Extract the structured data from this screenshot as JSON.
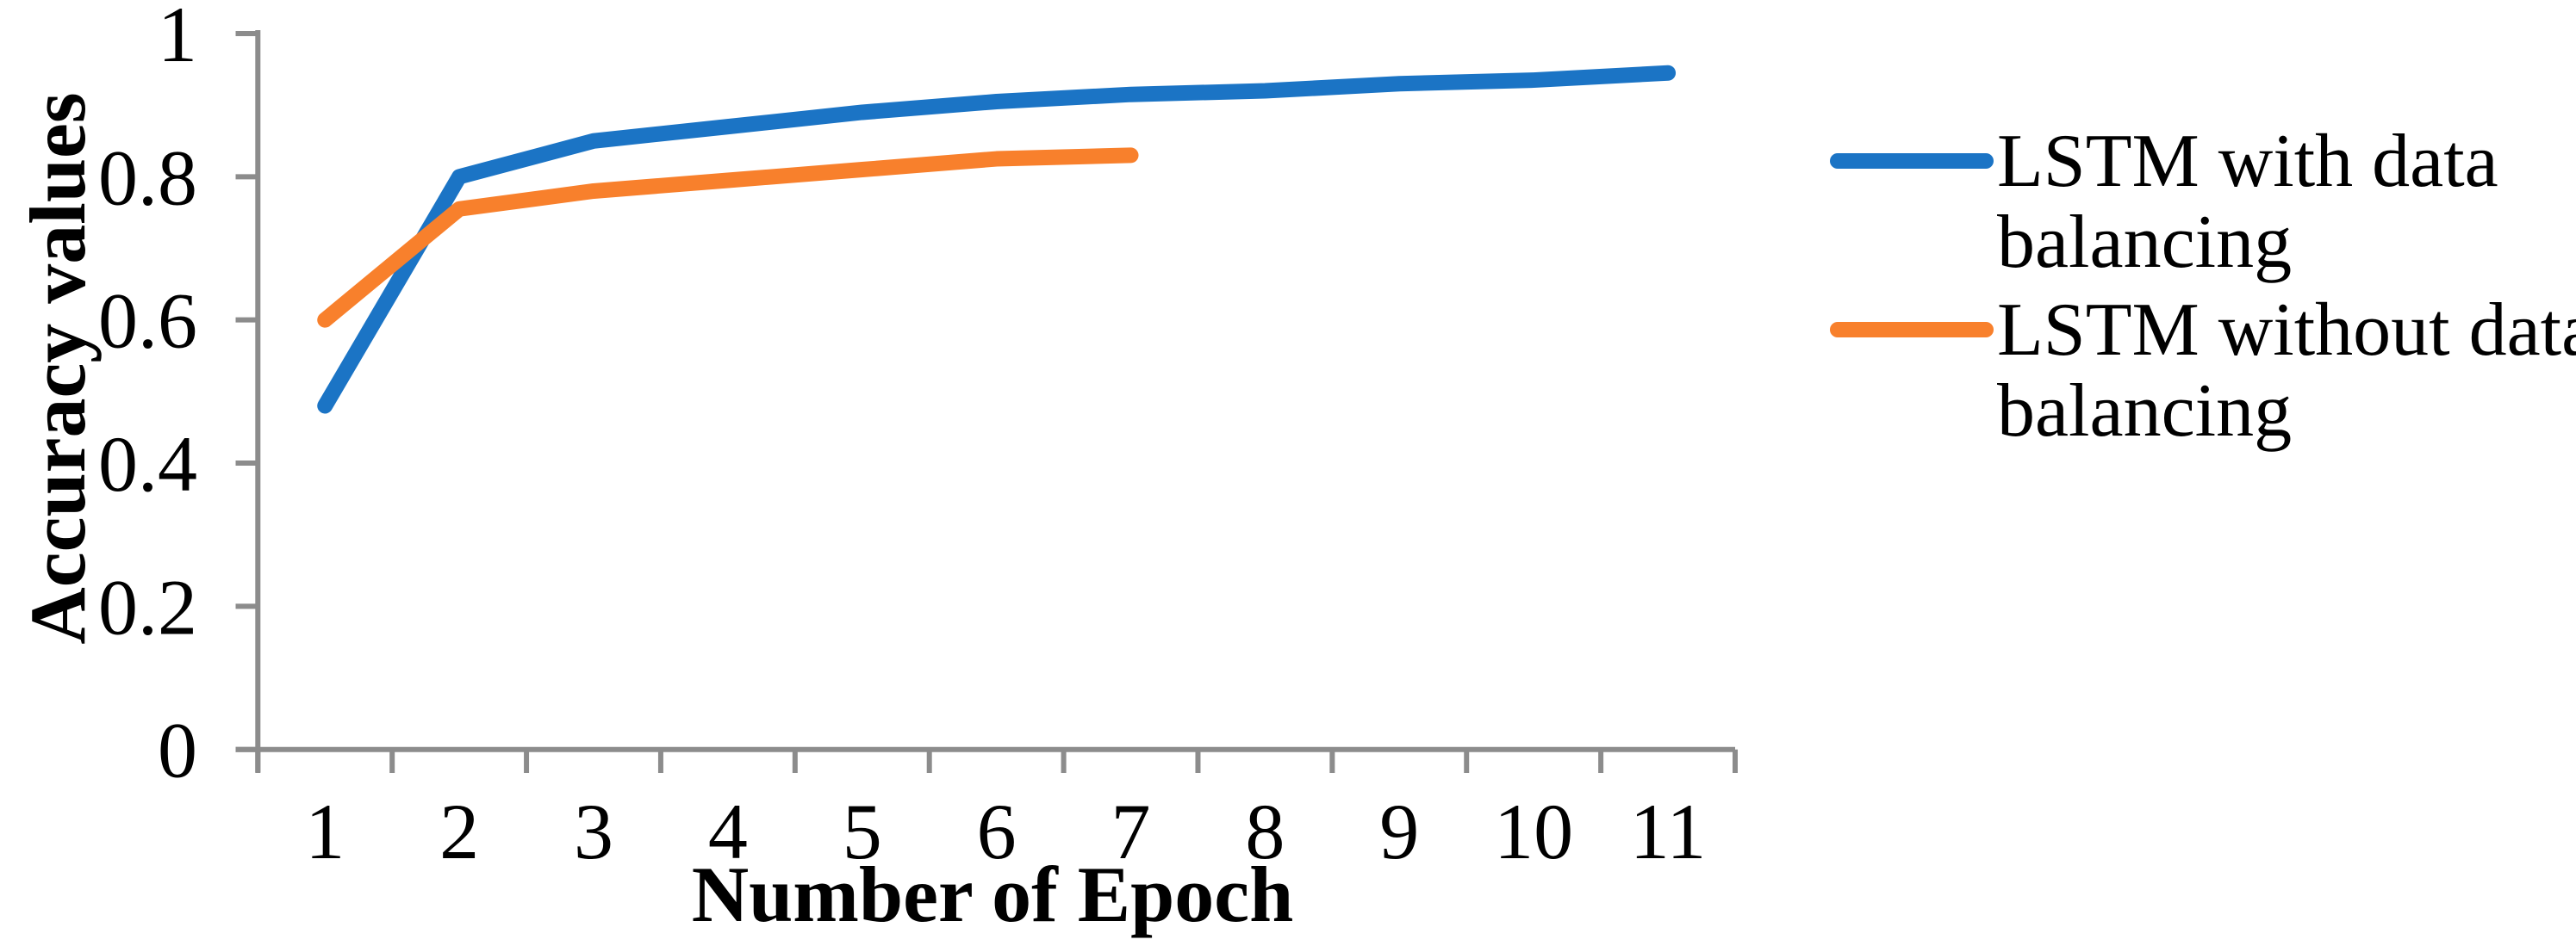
{
  "figure": {
    "background": "#FFFFFF"
  },
  "chart_data": {
    "type": "line",
    "title": "",
    "xlabel": "Number of Epoch",
    "ylabel": "Accuracy values",
    "categories": [
      "1",
      "2",
      "3",
      "4",
      "5",
      "6",
      "7",
      "8",
      "9",
      "10",
      "11"
    ],
    "x_values": [
      1,
      2,
      3,
      4,
      5,
      6,
      7,
      8,
      9,
      10,
      11
    ],
    "series": [
      {
        "name": "LSTM with data balancing",
        "color": "#1B74C5",
        "x": [
          1,
          2,
          3,
          4,
          5,
          6,
          7,
          8,
          9,
          10,
          11
        ],
        "values": [
          0.48,
          0.8,
          0.85,
          0.87,
          0.89,
          0.905,
          0.915,
          0.92,
          0.93,
          0.935,
          0.945
        ]
      },
      {
        "name": "LSTM without data balancing",
        "color": "#F8802C",
        "x": [
          1,
          2,
          3,
          4,
          5,
          6,
          7
        ],
        "values": [
          0.6,
          0.755,
          0.78,
          0.795,
          0.81,
          0.825,
          0.83
        ]
      }
    ],
    "ylim": [
      0,
      1
    ],
    "ytick_values": [
      0,
      0.2,
      0.4,
      0.6,
      0.8,
      1
    ],
    "ytick_labels": [
      "0",
      "0.2",
      "0.4",
      "0.6",
      "0.8",
      "1"
    ],
    "grid": false,
    "legend_position": "right-of-plot",
    "legend": [
      {
        "label_lines": [
          "LSTM with data",
          "balancing"
        ],
        "color": "#1B74C5"
      },
      {
        "label_lines": [
          "LSTM without data",
          "balancing"
        ],
        "color": "#F8802C"
      }
    ],
    "axis_color": "#8C8C8C",
    "text_color": "#000000"
  }
}
